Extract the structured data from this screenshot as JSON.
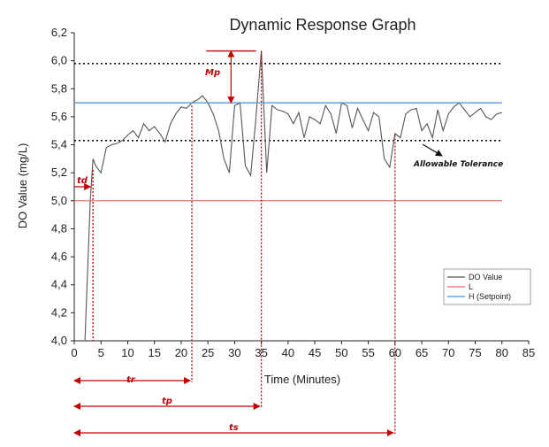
{
  "chart_data": {
    "type": "line",
    "title": "Dynamic Response Graph",
    "xlabel": "Time (Minutes)",
    "ylabel": "DO Value (mg/L)",
    "xlim": [
      0,
      85
    ],
    "ylim": [
      4.0,
      6.2
    ],
    "xticks": [
      "0",
      "5",
      "10",
      "15",
      "20",
      "25",
      "30",
      "35",
      "40",
      "45",
      "50",
      "55",
      "60",
      "65",
      "70",
      "75",
      "80",
      "85"
    ],
    "yticks": [
      "4,0",
      "4,2",
      "4,4",
      "4,6",
      "4,8",
      "5,0",
      "5,2",
      "5,4",
      "5,6",
      "5,8",
      "6,0",
      "6,2"
    ],
    "grid": false,
    "legend_position": "lower-right",
    "series": [
      {
        "name": "DO Value",
        "color": "#555555",
        "x": [
          2,
          3,
          3.5,
          4,
          5,
          6,
          7,
          8,
          9,
          10,
          11,
          12,
          13,
          14,
          15,
          16,
          17,
          18,
          19,
          20,
          21,
          22,
          23,
          24,
          25,
          26,
          27,
          28,
          29,
          30,
          31,
          32,
          33,
          34,
          35,
          36,
          37,
          38,
          39,
          40,
          41,
          42,
          43,
          44,
          45,
          46,
          47,
          48,
          49,
          50,
          51,
          52,
          53,
          54,
          55,
          56,
          57,
          58,
          59,
          60,
          61,
          62,
          63,
          64,
          65,
          66,
          67,
          68,
          69,
          70,
          71,
          72,
          73,
          74,
          75,
          76,
          77,
          78,
          79,
          80
        ],
        "y": [
          4.0,
          5.0,
          5.3,
          5.25,
          5.2,
          5.38,
          5.4,
          5.41,
          5.43,
          5.47,
          5.5,
          5.45,
          5.55,
          5.5,
          5.53,
          5.48,
          5.42,
          5.55,
          5.62,
          5.67,
          5.66,
          5.7,
          5.72,
          5.75,
          5.7,
          5.62,
          5.5,
          5.3,
          5.2,
          5.68,
          5.7,
          5.25,
          5.18,
          5.6,
          6.07,
          5.2,
          5.68,
          5.65,
          5.64,
          5.62,
          5.55,
          5.63,
          5.45,
          5.6,
          5.58,
          5.55,
          5.68,
          5.62,
          5.48,
          5.7,
          5.68,
          5.52,
          5.66,
          5.58,
          5.5,
          5.63,
          5.6,
          5.3,
          5.24,
          5.48,
          5.45,
          5.62,
          5.65,
          5.66,
          5.5,
          5.55,
          5.45,
          5.65,
          5.5,
          5.62,
          5.67,
          5.7,
          5.65,
          5.6,
          5.63,
          5.66,
          5.6,
          5.58,
          5.62,
          5.63
        ]
      },
      {
        "name": "L",
        "color": "#e06666",
        "x": [
          0,
          80
        ],
        "y": [
          5.0,
          5.0
        ]
      },
      {
        "name": "H (Setpoint)",
        "color": "#4a90d9",
        "x": [
          0,
          80
        ],
        "y": [
          5.7,
          5.7
        ]
      }
    ],
    "reference_lines": [
      {
        "y": 5.98,
        "style": "dotted"
      },
      {
        "y": 5.43,
        "style": "dotted"
      }
    ],
    "annotations": {
      "td": {
        "label": "td",
        "x_from": 0,
        "x_to": 3,
        "y": 5.1
      },
      "mp": {
        "label": "Mp",
        "x_from": 28,
        "x_to": 34,
        "y_top": 6.07,
        "y_bottom": 5.7
      },
      "tolerance": {
        "label": "Allowable Tolerance"
      },
      "tr": {
        "label": "tr",
        "x": 22
      },
      "tp": {
        "label": "tp",
        "x": 35
      },
      "ts": {
        "label": "ts",
        "x": 60
      }
    }
  }
}
